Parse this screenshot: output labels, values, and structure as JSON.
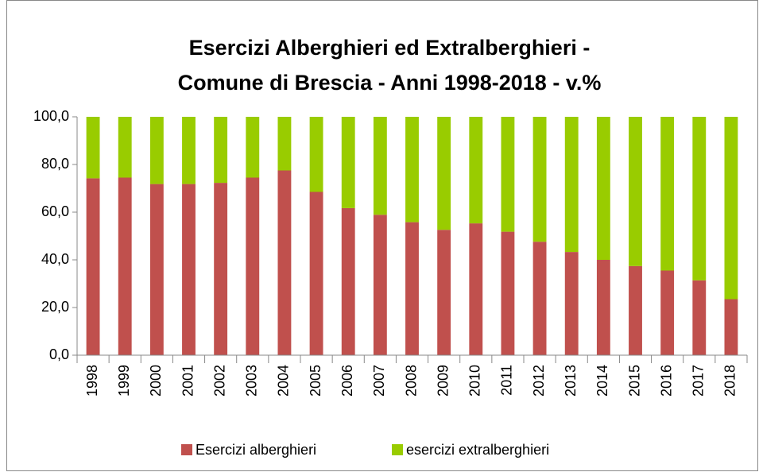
{
  "chart_data": {
    "type": "stacked_bar",
    "title": [
      "Esercizi Alberghieri ed Extralberghieri -",
      "Comune di Brescia - Anni 1998-2018 - v.%"
    ],
    "categories": [
      "1998",
      "1999",
      "2000",
      "2001",
      "2002",
      "2003",
      "2004",
      "2005",
      "2006",
      "2007",
      "2008",
      "2009",
      "2010",
      "2011",
      "2012",
      "2013",
      "2014",
      "2015",
      "2016",
      "2017",
      "2018"
    ],
    "series": [
      {
        "name": "Esercizi alberghieri",
        "color": "#c0504d",
        "values": [
          74.2,
          74.5,
          71.8,
          71.8,
          72.3,
          74.5,
          77.5,
          68.5,
          61.7,
          58.9,
          55.8,
          52.6,
          55.3,
          51.8,
          47.6,
          43.3,
          40.0,
          37.4,
          35.5,
          31.4,
          23.5
        ]
      },
      {
        "name": "esercizi extralberghieri",
        "color": "#99cc00",
        "values": [
          25.8,
          25.5,
          28.2,
          28.2,
          27.7,
          25.5,
          22.5,
          31.5,
          38.3,
          41.1,
          44.2,
          47.4,
          44.7,
          48.2,
          52.4,
          56.7,
          60.0,
          62.6,
          64.5,
          68.6,
          76.5
        ]
      }
    ],
    "ylim": [
      0,
      100
    ],
    "yticks": [
      {
        "value": 0,
        "label": "0,0"
      },
      {
        "value": 20,
        "label": "20,0"
      },
      {
        "value": 40,
        "label": "40,0"
      },
      {
        "value": 60,
        "label": "60,0"
      },
      {
        "value": 80,
        "label": "80,0"
      },
      {
        "value": 100,
        "label": "100,0"
      }
    ],
    "grid": false,
    "legend": "bottom"
  }
}
